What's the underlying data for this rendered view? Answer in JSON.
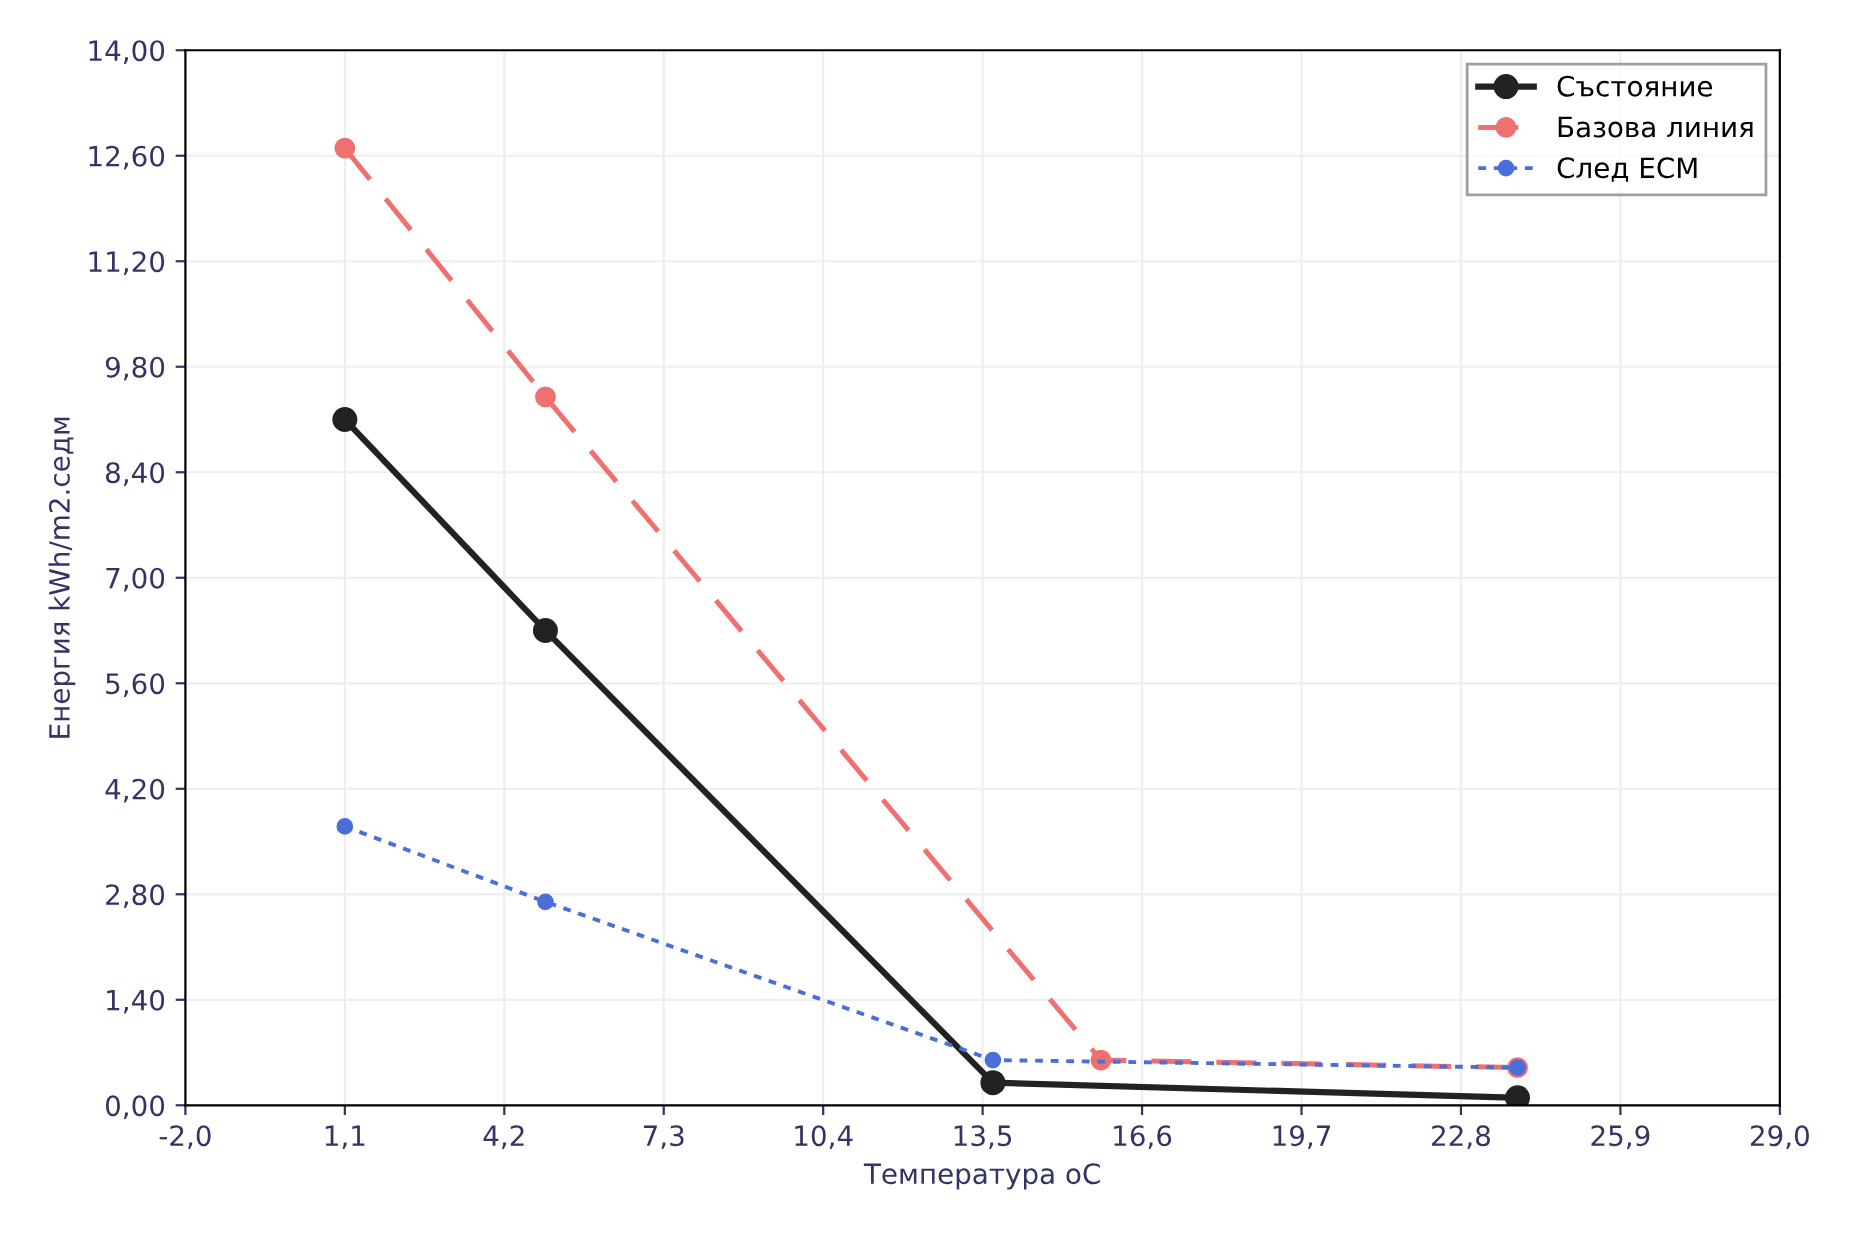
{
  "chart_data": {
    "type": "line",
    "xlabel": "Температура oC",
    "ylabel": "Енергия kWh/m2.седм",
    "series": [
      {
        "name": "Състояние",
        "color": "#222222",
        "line_style": "solid",
        "x": [
          1.1,
          5.0,
          13.7,
          23.9
        ],
        "values": [
          9.1,
          6.3,
          0.3,
          0.1
        ]
      },
      {
        "name": "Базова линия",
        "color": "#f07070",
        "line_style": "dashed",
        "x": [
          1.1,
          5.0,
          15.8,
          23.9
        ],
        "values": [
          12.7,
          9.4,
          0.6,
          0.5
        ]
      },
      {
        "name": "След ЕСМ",
        "color": "#4a6fd8",
        "line_style": "dotted",
        "x": [
          1.1,
          5.0,
          13.7,
          23.9
        ],
        "values": [
          3.7,
          2.7,
          0.6,
          0.5
        ]
      }
    ],
    "marker": "circle",
    "xlim": [
      -2.0,
      29.0
    ],
    "xticks": [
      {
        "value": -2.0,
        "label": "-2,0"
      },
      {
        "value": 1.1,
        "label": "1,1"
      },
      {
        "value": 4.2,
        "label": "4,2"
      },
      {
        "value": 7.3,
        "label": "7,3"
      },
      {
        "value": 10.4,
        "label": "10,4"
      },
      {
        "value": 13.5,
        "label": "13,5"
      },
      {
        "value": 16.6,
        "label": "16,6"
      },
      {
        "value": 19.7,
        "label": "19,7"
      },
      {
        "value": 22.8,
        "label": "22,8"
      },
      {
        "value": 25.9,
        "label": "25,9"
      },
      {
        "value": 29.0,
        "label": "29,0"
      }
    ],
    "ylim": [
      0,
      14
    ],
    "yticks": [
      {
        "value": 0,
        "label": "0,00"
      },
      {
        "value": 1.4,
        "label": "1,40"
      },
      {
        "value": 2.8,
        "label": "2,80"
      },
      {
        "value": 4.2,
        "label": "4,20"
      },
      {
        "value": 5.6,
        "label": "5,60"
      },
      {
        "value": 7.0,
        "label": "7,00"
      },
      {
        "value": 8.4,
        "label": "8,40"
      },
      {
        "value": 9.8,
        "label": "9,80"
      },
      {
        "value": 11.2,
        "label": "11,20"
      },
      {
        "value": 12.6,
        "label": "12,60"
      },
      {
        "value": 14.0,
        "label": "14,00"
      }
    ],
    "grid": true,
    "legend": "top right"
  }
}
